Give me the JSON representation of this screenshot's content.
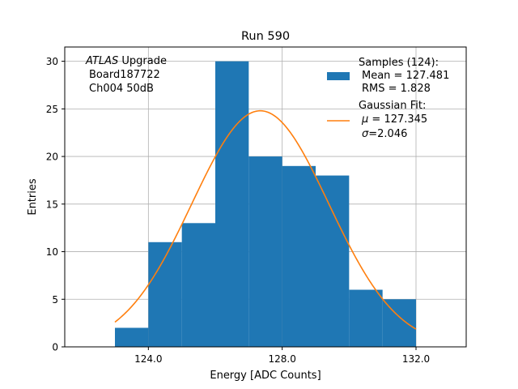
{
  "chart_data": {
    "type": "bar",
    "title": "Run 590",
    "xlabel": "Energy [ADC Counts]",
    "ylabel": "Entries",
    "xlim": [
      121.5,
      133.5
    ],
    "ylim": [
      0,
      31.5
    ],
    "xticks": [
      124,
      128,
      132
    ],
    "xtick_labels": [
      "124.0",
      "128.0",
      "132.0"
    ],
    "yticks": [
      0,
      5,
      10,
      15,
      20,
      25,
      30
    ],
    "ytick_labels": [
      "0",
      "5",
      "10",
      "15",
      "20",
      "25",
      "30"
    ],
    "grid": true,
    "bins": [
      {
        "x0": 123,
        "x1": 124,
        "count": 2
      },
      {
        "x0": 124,
        "x1": 125,
        "count": 11
      },
      {
        "x0": 125,
        "x1": 126,
        "count": 13
      },
      {
        "x0": 126,
        "x1": 127,
        "count": 30
      },
      {
        "x0": 127,
        "x1": 128,
        "count": 20
      },
      {
        "x0": 128,
        "x1": 129,
        "count": 19
      },
      {
        "x0": 129,
        "x1": 130,
        "count": 18
      },
      {
        "x0": 130,
        "x1": 131,
        "count": 6
      },
      {
        "x0": 131,
        "x1": 132,
        "count": 5
      }
    ],
    "fit": {
      "name": "Gaussian Fit",
      "mu": 127.345,
      "sigma": 2.046,
      "amplitude": 24.8,
      "x_range": [
        123,
        132
      ]
    },
    "colors": {
      "bars": "#1f77b4",
      "fit": "#ff7f0e",
      "grid": "#b0b0b0"
    },
    "annotation": {
      "line1_italic": "ATLAS",
      "line1_rest": " Upgrade",
      "line2": "Board187722",
      "line3": "Ch004 50dB"
    },
    "legend": {
      "position": "top-right",
      "samples_line1": "Samples (124):",
      "samples_line2": "Mean = 127.481",
      "samples_line3": "RMS = 1.828",
      "fit_line1": "Gaussian Fit:",
      "fit_mu_symbol": "μ",
      "fit_mu_value": " = 127.345",
      "fit_sigma_symbol": "σ",
      "fit_sigma_value": "=2.046"
    }
  }
}
